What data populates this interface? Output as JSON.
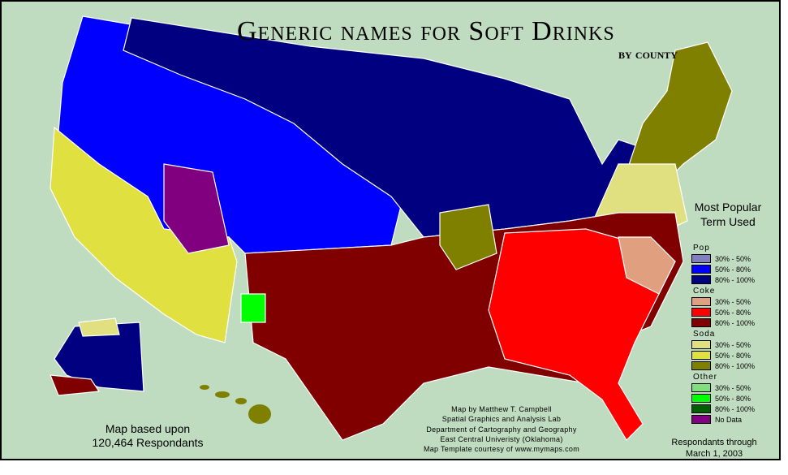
{
  "title": "Generic names for Soft Drinks",
  "subtitle": "by county",
  "legend_title": [
    "Most Popular",
    "Term Used"
  ],
  "legend": [
    {
      "group": "Pop",
      "items": [
        {
          "label": "30% - 50%",
          "color": "#8080c0"
        },
        {
          "label": "50% - 80%",
          "color": "#0000ff"
        },
        {
          "label": "80% - 100%",
          "color": "#000080"
        }
      ]
    },
    {
      "group": "Coke",
      "items": [
        {
          "label": "30% - 50%",
          "color": "#e0a080"
        },
        {
          "label": "50% - 80%",
          "color": "#ff0000"
        },
        {
          "label": "80% - 100%",
          "color": "#800000"
        }
      ]
    },
    {
      "group": "Soda",
      "items": [
        {
          "label": "30% - 50%",
          "color": "#e0e080"
        },
        {
          "label": "50% - 80%",
          "color": "#e0e040"
        },
        {
          "label": "80% - 100%",
          "color": "#808000"
        }
      ]
    },
    {
      "group": "Other",
      "items": [
        {
          "label": "30% - 50%",
          "color": "#80e080"
        },
        {
          "label": "50% - 80%",
          "color": "#00ff00"
        },
        {
          "label": "80% - 100%",
          "color": "#006000"
        },
        {
          "label": "No Data",
          "color": "#800080"
        }
      ]
    }
  ],
  "credits": [
    "Map by Matthew T. Campbell",
    "Spatial Graphics and Analysis Lab",
    "Department of Cartography and Geography",
    "East Central Univeristy (Oklahoma)",
    "Map Template courtesy of www.mymaps.com"
  ],
  "based_on": [
    "Map based upon",
    "120,464 Respondants"
  ],
  "respondents_through": [
    "Respondants through",
    "March 1, 2003"
  ],
  "background_color": "#c0dcc0"
}
